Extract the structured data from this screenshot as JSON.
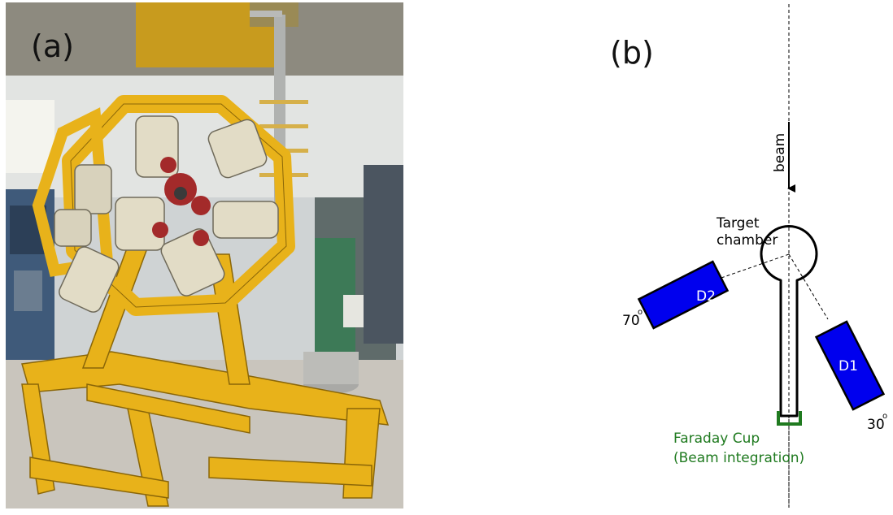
{
  "panel_a": {
    "label": "(a)"
  },
  "panel_b": {
    "label": "(b)",
    "beam_label": "beam",
    "target_label_line1": "Target",
    "target_label_line2": "chamber",
    "detector_d2": {
      "label": "D2",
      "angle_label": "70",
      "degree_symbol": "o"
    },
    "detector_d1": {
      "label": "D1",
      "angle_label": "30",
      "degree_symbol": "o"
    },
    "faraday_line1": "Faraday Cup",
    "faraday_line2": "(Beam integration)"
  },
  "colors": {
    "detector_fill": "#0000ee",
    "faraday_text": "#1f7a1f",
    "frame_yellow": "#e8b21a",
    "floor": "#c9c5bd",
    "wall": "#d9dde0"
  },
  "icons": [
    "detector-array-photo",
    "beam-arrow-icon",
    "target-chamber-shape",
    "faraday-cup-shape"
  ]
}
